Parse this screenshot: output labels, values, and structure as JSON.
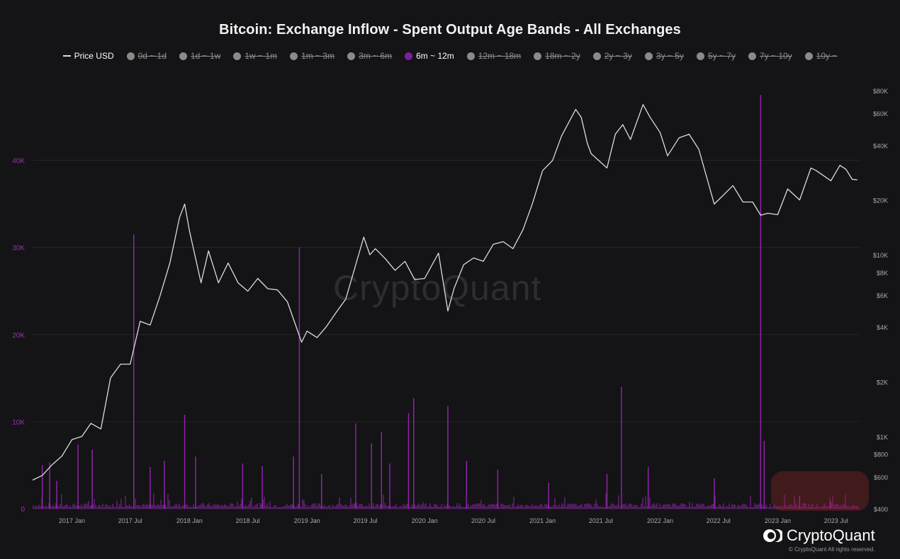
{
  "chart_data": {
    "type": "line",
    "title": "Bitcoin: Exchange Inflow - Spent Output Age Bands - All Exchanges",
    "legend": [
      {
        "label": "Price USD",
        "active": true,
        "kind": "line",
        "color": "#dcdcdc"
      },
      {
        "label": "0d ~ 1d",
        "active": false,
        "kind": "dot",
        "color": "#8a8a8a"
      },
      {
        "label": "1d ~ 1w",
        "active": false,
        "kind": "dot",
        "color": "#8a8a8a"
      },
      {
        "label": "1w ~ 1m",
        "active": false,
        "kind": "dot",
        "color": "#8a8a8a"
      },
      {
        "label": "1m ~ 3m",
        "active": false,
        "kind": "dot",
        "color": "#8a8a8a"
      },
      {
        "label": "3m ~ 6m",
        "active": false,
        "kind": "dot",
        "color": "#8a8a8a"
      },
      {
        "label": "6m ~ 12m",
        "active": true,
        "kind": "dot",
        "color": "#7b1fa2"
      },
      {
        "label": "12m ~ 18m",
        "active": false,
        "kind": "dot",
        "color": "#8a8a8a"
      },
      {
        "label": "18m ~ 2y",
        "active": false,
        "kind": "dot",
        "color": "#8a8a8a"
      },
      {
        "label": "2y ~ 3y",
        "active": false,
        "kind": "dot",
        "color": "#8a8a8a"
      },
      {
        "label": "3y ~ 5y",
        "active": false,
        "kind": "dot",
        "color": "#8a8a8a"
      },
      {
        "label": "5y ~ 7y",
        "active": false,
        "kind": "dot",
        "color": "#8a8a8a"
      },
      {
        "label": "7y ~ 10y",
        "active": false,
        "kind": "dot",
        "color": "#8a8a8a"
      },
      {
        "label": "10y ~",
        "active": false,
        "kind": "dot",
        "color": "#8a8a8a"
      }
    ],
    "x_ticks": [
      "2017 Jan",
      "2017 Jul",
      "2018 Jan",
      "2018 Jul",
      "2019 Jan",
      "2019 Jul",
      "2020 Jan",
      "2020 Jul",
      "2021 Jan",
      "2021 Jul",
      "2022 Jan",
      "2022 Jul",
      "2023 Jan",
      "2023 Jul"
    ],
    "y_left": {
      "ticks": [
        0,
        10000,
        20000,
        30000,
        40000
      ],
      "labels": [
        "0",
        "10K",
        "20K",
        "30K",
        "40K"
      ],
      "range": [
        0,
        48000
      ],
      "color": "#9b30b8"
    },
    "y_right": {
      "scale": "log",
      "range": [
        400,
        80000
      ],
      "ticks": [
        400,
        600,
        800,
        1000,
        2000,
        4000,
        6000,
        8000,
        10000,
        20000,
        40000,
        60000,
        80000
      ],
      "labels": [
        "$400",
        "$600",
        "$800",
        "$1K",
        "$2K",
        "$4K",
        "$6K",
        "$8K",
        "$10K",
        "$20K",
        "$40K",
        "$60K",
        "$80K"
      ]
    },
    "grid": true,
    "series": [
      {
        "name": "Price USD",
        "axis": "right",
        "color": "#dcdcdc",
        "x": [
          "2016-09-01",
          "2016-10-01",
          "2016-11-01",
          "2016-12-01",
          "2017-01-01",
          "2017-02-01",
          "2017-03-01",
          "2017-04-01",
          "2017-05-01",
          "2017-06-01",
          "2017-07-01",
          "2017-08-01",
          "2017-09-01",
          "2017-10-01",
          "2017-11-01",
          "2017-12-01",
          "2017-12-17",
          "2018-01-01",
          "2018-02-06",
          "2018-03-01",
          "2018-04-01",
          "2018-05-01",
          "2018-06-01",
          "2018-07-01",
          "2018-08-01",
          "2018-09-01",
          "2018-10-01",
          "2018-11-01",
          "2018-12-15",
          "2019-01-01",
          "2019-02-01",
          "2019-03-01",
          "2019-04-01",
          "2019-05-01",
          "2019-06-26",
          "2019-07-15",
          "2019-08-01",
          "2019-09-01",
          "2019-10-01",
          "2019-11-01",
          "2019-12-01",
          "2020-01-01",
          "2020-02-13",
          "2020-03-13",
          "2020-04-01",
          "2020-05-01",
          "2020-06-01",
          "2020-07-01",
          "2020-08-01",
          "2020-09-01",
          "2020-10-01",
          "2020-11-01",
          "2020-12-01",
          "2021-01-01",
          "2021-02-01",
          "2021-03-01",
          "2021-04-14",
          "2021-05-01",
          "2021-05-20",
          "2021-06-01",
          "2021-07-20",
          "2021-08-15",
          "2021-09-07",
          "2021-10-01",
          "2021-11-09",
          "2021-12-01",
          "2022-01-01",
          "2022-01-24",
          "2022-03-01",
          "2022-04-01",
          "2022-05-01",
          "2022-06-18",
          "2022-07-01",
          "2022-08-15",
          "2022-09-15",
          "2022-10-15",
          "2022-11-09",
          "2022-12-01",
          "2023-01-01",
          "2023-02-01",
          "2023-03-10",
          "2023-04-14",
          "2023-05-01",
          "2023-06-15",
          "2023-07-13",
          "2023-08-01",
          "2023-08-20",
          "2023-09-05"
        ],
        "values": [
          575,
          610,
          700,
          780,
          960,
          1000,
          1180,
          1100,
          2100,
          2500,
          2500,
          4300,
          4100,
          5900,
          9000,
          16000,
          19000,
          13500,
          7000,
          10500,
          7000,
          9000,
          7000,
          6300,
          7400,
          6500,
          6400,
          5500,
          3300,
          3800,
          3500,
          4000,
          4800,
          5700,
          12500,
          10000,
          10800,
          9500,
          8200,
          9200,
          7300,
          7400,
          10200,
          4900,
          6500,
          8800,
          9600,
          9200,
          11400,
          11800,
          10800,
          13700,
          19200,
          29000,
          33000,
          45000,
          63000,
          57000,
          41000,
          36000,
          30000,
          46000,
          52000,
          43000,
          67000,
          57000,
          47000,
          35000,
          44000,
          46000,
          38000,
          19000,
          20000,
          24000,
          19500,
          19500,
          16500,
          16900,
          16600,
          23000,
          20000,
          30000,
          29000,
          25500,
          31000,
          29500,
          26000,
          25800
        ]
      },
      {
        "name": "6m ~ 12m",
        "axis": "left",
        "color": "#8e24aa",
        "spikes": [
          {
            "x": "2016-10-01",
            "value": 5000
          },
          {
            "x": "2016-10-24",
            "value": 5300
          },
          {
            "x": "2016-11-15",
            "value": 3200
          },
          {
            "x": "2017-01-20",
            "value": 7400
          },
          {
            "x": "2017-03-05",
            "value": 6800
          },
          {
            "x": "2017-07-12",
            "value": 31500
          },
          {
            "x": "2017-09-01",
            "value": 4800
          },
          {
            "x": "2017-10-15",
            "value": 5500
          },
          {
            "x": "2017-12-17",
            "value": 10800
          },
          {
            "x": "2018-01-20",
            "value": 6000
          },
          {
            "x": "2018-06-15",
            "value": 5200
          },
          {
            "x": "2018-08-15",
            "value": 4900
          },
          {
            "x": "2018-12-08",
            "value": 30000
          },
          {
            "x": "2018-11-20",
            "value": 6000
          },
          {
            "x": "2019-02-15",
            "value": 4000
          },
          {
            "x": "2019-06-01",
            "value": 9800
          },
          {
            "x": "2019-07-20",
            "value": 7500
          },
          {
            "x": "2019-08-20",
            "value": 8800
          },
          {
            "x": "2019-09-15",
            "value": 5200
          },
          {
            "x": "2019-11-28",
            "value": 12700
          },
          {
            "x": "2019-11-12",
            "value": 11000
          },
          {
            "x": "2020-03-13",
            "value": 11800
          },
          {
            "x": "2020-05-10",
            "value": 5500
          },
          {
            "x": "2020-08-15",
            "value": 4500
          },
          {
            "x": "2021-01-20",
            "value": 3000
          },
          {
            "x": "2021-07-20",
            "value": 4000
          },
          {
            "x": "2021-09-03",
            "value": 14000
          },
          {
            "x": "2021-11-25",
            "value": 4800
          },
          {
            "x": "2022-06-18",
            "value": 3500
          },
          {
            "x": "2022-11-09",
            "value": 47500
          },
          {
            "x": "2022-11-20",
            "value": 7800
          },
          {
            "x": "2023-03-10",
            "value": 1500
          },
          {
            "x": "2023-06-15",
            "value": 800
          }
        ]
      }
    ]
  },
  "watermark": "CryptoQuant",
  "brand": {
    "name": "CryptoQuant",
    "copyright": "© CryptoQuant All rights reserved."
  }
}
